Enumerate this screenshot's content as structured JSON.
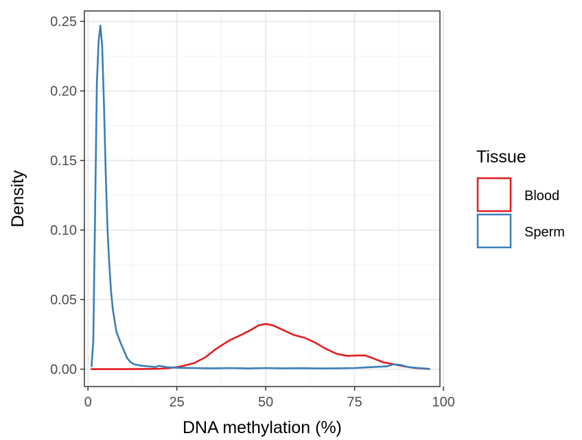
{
  "chart_data": {
    "type": "line",
    "title": "",
    "xlabel": "DNA methylation (%)",
    "ylabel": "Density",
    "xlim": [
      -1,
      99
    ],
    "ylim": [
      -0.0125,
      0.2575
    ],
    "x_ticks": [
      0,
      25,
      50,
      75,
      100
    ],
    "y_ticks": [
      0.0,
      0.05,
      0.1,
      0.15,
      0.2,
      0.25
    ],
    "x_tick_labels": [
      "0",
      "25",
      "50",
      "75",
      "100"
    ],
    "y_tick_labels": [
      "0.00",
      "0.05",
      "0.10",
      "0.15",
      "0.20",
      "0.25"
    ],
    "grid": true,
    "legend": {
      "title": "Tissue",
      "position": "right",
      "entries": [
        "Blood",
        "Sperm"
      ]
    },
    "series": [
      {
        "name": "Blood",
        "color": "#e41a1c",
        "x": [
          1,
          5,
          10,
          15,
          20,
          23,
          25,
          27,
          30,
          33,
          36,
          40,
          43,
          46,
          48,
          50,
          52,
          55,
          58,
          61,
          64,
          67,
          70,
          73,
          76,
          78,
          80,
          83,
          86,
          89,
          92,
          96
        ],
        "y": [
          0.0,
          0.0,
          0.0,
          0.0001,
          0.0003,
          0.0008,
          0.0015,
          0.0025,
          0.0045,
          0.0085,
          0.0145,
          0.021,
          0.0245,
          0.0285,
          0.0315,
          0.0325,
          0.0315,
          0.028,
          0.0245,
          0.0225,
          0.019,
          0.0145,
          0.011,
          0.0095,
          0.0098,
          0.0098,
          0.008,
          0.005,
          0.0035,
          0.002,
          0.0008,
          0.0001
        ]
      },
      {
        "name": "Sperm",
        "color": "#377eb8",
        "x": [
          1,
          1.5,
          2,
          2.5,
          3,
          3.5,
          4,
          4.5,
          5,
          5.5,
          6,
          6.5,
          7,
          7.5,
          8,
          8.5,
          9,
          10,
          11,
          12,
          13,
          15,
          17,
          19,
          20,
          22,
          25,
          30,
          35,
          40,
          45,
          50,
          55,
          60,
          65,
          70,
          75,
          80,
          84,
          86,
          88,
          90,
          93,
          96
        ],
        "y": [
          0.002,
          0.02,
          0.11,
          0.205,
          0.236,
          0.247,
          0.232,
          0.19,
          0.14,
          0.1,
          0.075,
          0.056,
          0.043,
          0.035,
          0.027,
          0.0235,
          0.02,
          0.014,
          0.008,
          0.005,
          0.0035,
          0.0025,
          0.002,
          0.0015,
          0.0025,
          0.0015,
          0.001,
          0.0008,
          0.0006,
          0.0008,
          0.0005,
          0.0008,
          0.0006,
          0.0007,
          0.0005,
          0.0006,
          0.0008,
          0.0015,
          0.002,
          0.0035,
          0.003,
          0.0015,
          0.0008,
          0.0002
        ]
      }
    ]
  }
}
